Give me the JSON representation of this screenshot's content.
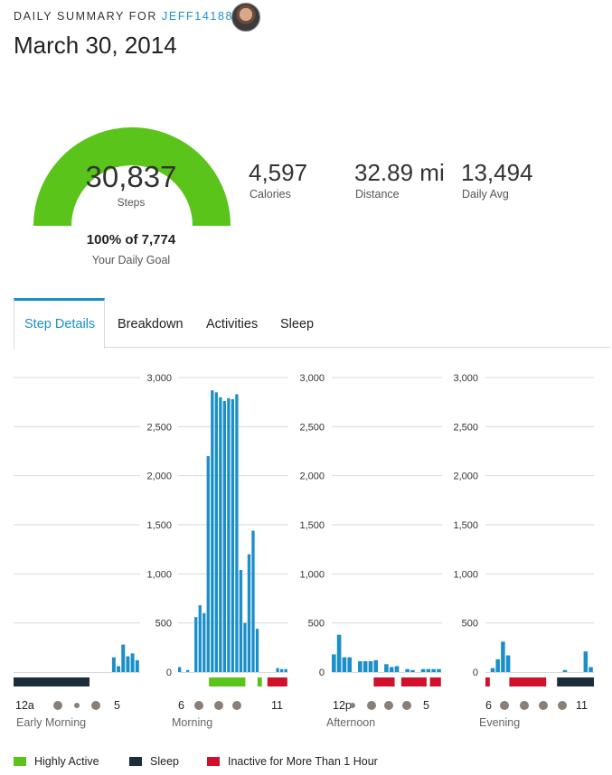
{
  "header": {
    "label": "DAILY SUMMARY FOR ",
    "username": "JEFF14188",
    "date": "March 30, 2014"
  },
  "gauge": {
    "steps": "30,837",
    "steps_label": "Steps",
    "goal_pct": "100% of 7,774",
    "goal_label": "Your Daily Goal",
    "fill_fraction": 1.0,
    "color": "#5ac41a"
  },
  "stats": [
    {
      "value": "4,597",
      "label": "Calories"
    },
    {
      "value": "32.89 mi",
      "label": "Distance"
    },
    {
      "value": "13,494",
      "label": "Daily Avg"
    }
  ],
  "tabs": [
    {
      "label": "Step Details",
      "active": true
    },
    {
      "label": "Breakdown",
      "active": false
    },
    {
      "label": "Activities",
      "active": false
    },
    {
      "label": "Sleep",
      "active": false
    }
  ],
  "colors": {
    "bar": "#1b8fc9",
    "highly_active": "#5ac41a",
    "sleep": "#1d2d3a",
    "inactive": "#d0112b",
    "dot": "#8a7f77"
  },
  "chart_data": {
    "type": "bar",
    "ylim": [
      0,
      3000
    ],
    "y_ticks": [
      "0",
      "500",
      "1,000",
      "1,500",
      "2,000",
      "2,500",
      "3,000"
    ],
    "panels": [
      {
        "name": "Early Morning",
        "start_label": "12a",
        "end_label": "5",
        "show_ticks": false,
        "values": [
          0,
          0,
          0,
          0,
          0,
          0,
          0,
          0,
          0,
          0,
          0,
          0,
          0,
          0,
          0,
          0,
          0,
          0,
          0,
          0,
          0,
          150,
          60,
          280,
          160,
          190,
          120
        ],
        "activity": [
          {
            "type": "sleep",
            "from": 0,
            "to": 0.84
          }
        ]
      },
      {
        "name": "Morning",
        "start_label": "6",
        "end_label": "11",
        "show_ticks": true,
        "values": [
          50,
          0,
          20,
          0,
          560,
          680,
          600,
          2200,
          2870,
          2850,
          2800,
          2760,
          2790,
          2780,
          2830,
          1040,
          500,
          1200,
          1440,
          440,
          0,
          0,
          0,
          0,
          40,
          30,
          30
        ],
        "activity": [
          {
            "type": "highly_active",
            "from": 0.28,
            "to": 0.61
          },
          {
            "type": "highly_active",
            "from": 0.72,
            "to": 0.76
          },
          {
            "type": "inactive",
            "from": 0.81,
            "to": 0.99
          }
        ]
      },
      {
        "name": "Afternoon",
        "start_label": "12p",
        "end_label": "5",
        "show_ticks": true,
        "values": [
          180,
          380,
          150,
          150,
          0,
          110,
          110,
          110,
          120,
          0,
          80,
          50,
          60,
          0,
          30,
          20,
          0,
          30,
          30,
          30,
          30
        ],
        "activity": [
          {
            "type": "inactive",
            "from": 0.38,
            "to": 0.57
          },
          {
            "type": "inactive",
            "from": 0.63,
            "to": 0.86
          },
          {
            "type": "inactive",
            "from": 0.89,
            "to": 0.99
          }
        ]
      },
      {
        "name": "Evening",
        "start_label": "6",
        "end_label": "11",
        "show_ticks": true,
        "values": [
          0,
          40,
          130,
          310,
          170,
          0,
          0,
          0,
          0,
          0,
          0,
          0,
          0,
          0,
          0,
          20,
          0,
          0,
          0,
          210,
          50
        ],
        "activity": [
          {
            "type": "inactive",
            "from": 0.0,
            "to": 0.04
          },
          {
            "type": "inactive",
            "from": 0.22,
            "to": 0.56
          },
          {
            "type": "sleep",
            "from": 0.66,
            "to": 1.0
          }
        ]
      }
    ]
  },
  "legend": [
    {
      "key": "highly_active",
      "label": "Highly Active"
    },
    {
      "key": "sleep",
      "label": "Sleep"
    },
    {
      "key": "inactive",
      "label": "Inactive for More Than 1 Hour"
    }
  ]
}
